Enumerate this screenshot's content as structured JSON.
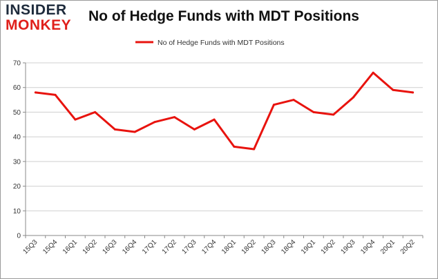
{
  "logo": {
    "line1": "INSIDER",
    "line2": "MONKEY"
  },
  "colors": {
    "series": "#e8130e",
    "grid": "#cfcfcf",
    "axis": "#8a8a8a",
    "logo_dark": "#1e2b3c",
    "logo_red": "#e0201b"
  },
  "chart_data": {
    "type": "line",
    "title": "No of Hedge Funds with MDT Positions",
    "xlabel": "",
    "ylabel": "",
    "categories": [
      "15Q3",
      "15Q4",
      "16Q1",
      "16Q2",
      "16Q3",
      "16Q4",
      "17Q1",
      "17Q2",
      "17Q3",
      "17Q4",
      "18Q1",
      "18Q2",
      "18Q3",
      "18Q4",
      "19Q1",
      "19Q2",
      "19Q3",
      "19Q4",
      "20Q1",
      "20Q2"
    ],
    "series": [
      {
        "name": "No of Hedge Funds with MDT Positions",
        "values": [
          58,
          57,
          47,
          50,
          43,
          42,
          46,
          48,
          43,
          47,
          36,
          35,
          53,
          55,
          50,
          49,
          56,
          66,
          59,
          58
        ]
      }
    ],
    "ylim": [
      0,
      70
    ],
    "yticks": [
      0,
      10,
      20,
      30,
      40,
      50,
      60,
      70
    ],
    "grid": true,
    "legend": "top-center"
  }
}
